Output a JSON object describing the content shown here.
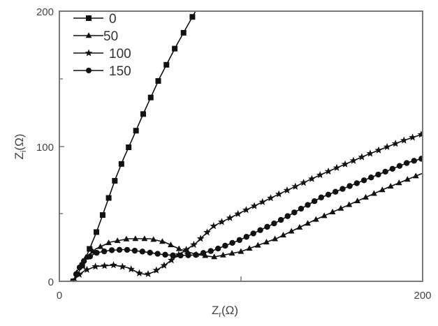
{
  "chart_data": {
    "type": "line",
    "title": "",
    "xlabel": "Z_r(Ω)",
    "ylabel": "Z_i(Ω)",
    "xlim": [
      0,
      200
    ],
    "ylim": [
      0,
      200
    ],
    "x_ticks": [
      "0",
      "200"
    ],
    "y_ticks": [
      "0",
      "100",
      "200"
    ],
    "grid": false,
    "legend_position": "upper-left",
    "series": [
      {
        "name": "0",
        "marker": "square",
        "points": [
          [
            7.7,
            0
          ],
          [
            12,
            10
          ],
          [
            16,
            22
          ],
          [
            20,
            35
          ],
          [
            23,
            46
          ],
          [
            25.4,
            55
          ],
          [
            28,
            65
          ],
          [
            31.2,
            77
          ],
          [
            35.4,
            91
          ],
          [
            40.4,
            106
          ],
          [
            46.2,
            124
          ],
          [
            55,
            150
          ],
          [
            63.8,
            173
          ],
          [
            75,
            200
          ]
        ]
      },
      {
        "name": "50",
        "marker": "triangle",
        "points": [
          [
            7.7,
            0
          ],
          [
            10,
            8
          ],
          [
            14,
            17
          ],
          [
            20,
            24
          ],
          [
            28,
            29
          ],
          [
            38,
            31.5
          ],
          [
            50,
            31.5
          ],
          [
            58,
            29
          ],
          [
            66,
            24
          ],
          [
            75,
            20
          ],
          [
            85,
            18
          ],
          [
            100,
            22
          ],
          [
            120,
            32
          ],
          [
            140,
            45
          ],
          [
            160,
            57
          ],
          [
            180,
            69
          ],
          [
            200,
            80
          ]
        ]
      },
      {
        "name": "100",
        "marker": "star",
        "points": [
          [
            7.7,
            0
          ],
          [
            10,
            4
          ],
          [
            14,
            8
          ],
          [
            20,
            11
          ],
          [
            30,
            12
          ],
          [
            38,
            10
          ],
          [
            44,
            6
          ],
          [
            48,
            5
          ],
          [
            52,
            7
          ],
          [
            58,
            12
          ],
          [
            66,
            20
          ],
          [
            75,
            28
          ],
          [
            85,
            41
          ],
          [
            100,
            51
          ],
          [
            120,
            64
          ],
          [
            144,
            79
          ],
          [
            170,
            94
          ],
          [
            189,
            104
          ],
          [
            200,
            109
          ]
        ]
      },
      {
        "name": "150",
        "marker": "circle",
        "points": [
          [
            7.7,
            0
          ],
          [
            10,
            8
          ],
          [
            14,
            16
          ],
          [
            20,
            21
          ],
          [
            28,
            23
          ],
          [
            36,
            23.5
          ],
          [
            46,
            22
          ],
          [
            56,
            20
          ],
          [
            64,
            19
          ],
          [
            75,
            19.5
          ],
          [
            85,
            23
          ],
          [
            100,
            31
          ],
          [
            120,
            44
          ],
          [
            144,
            62
          ],
          [
            170,
            76
          ],
          [
            192,
            88
          ],
          [
            200,
            91
          ]
        ]
      }
    ]
  },
  "axes": {
    "x_title_main": "Z",
    "x_title_sub": "r",
    "x_title_unit": "(Ω)",
    "y_title_main": "Z",
    "y_title_sub": "i",
    "y_title_unit": "(Ω)",
    "x_tick_0": "0",
    "x_tick_200": "200",
    "y_tick_0": "0",
    "y_tick_100": "100",
    "y_tick_200": "200"
  },
  "legend": {
    "items": [
      {
        "label": "0",
        "marker": "square"
      },
      {
        "label": "50",
        "marker": "triangle"
      },
      {
        "label": "100",
        "marker": "star"
      },
      {
        "label": "150",
        "marker": "circle"
      }
    ]
  },
  "colors": {
    "frame": "#7a7a7a",
    "series": "#111111"
  }
}
